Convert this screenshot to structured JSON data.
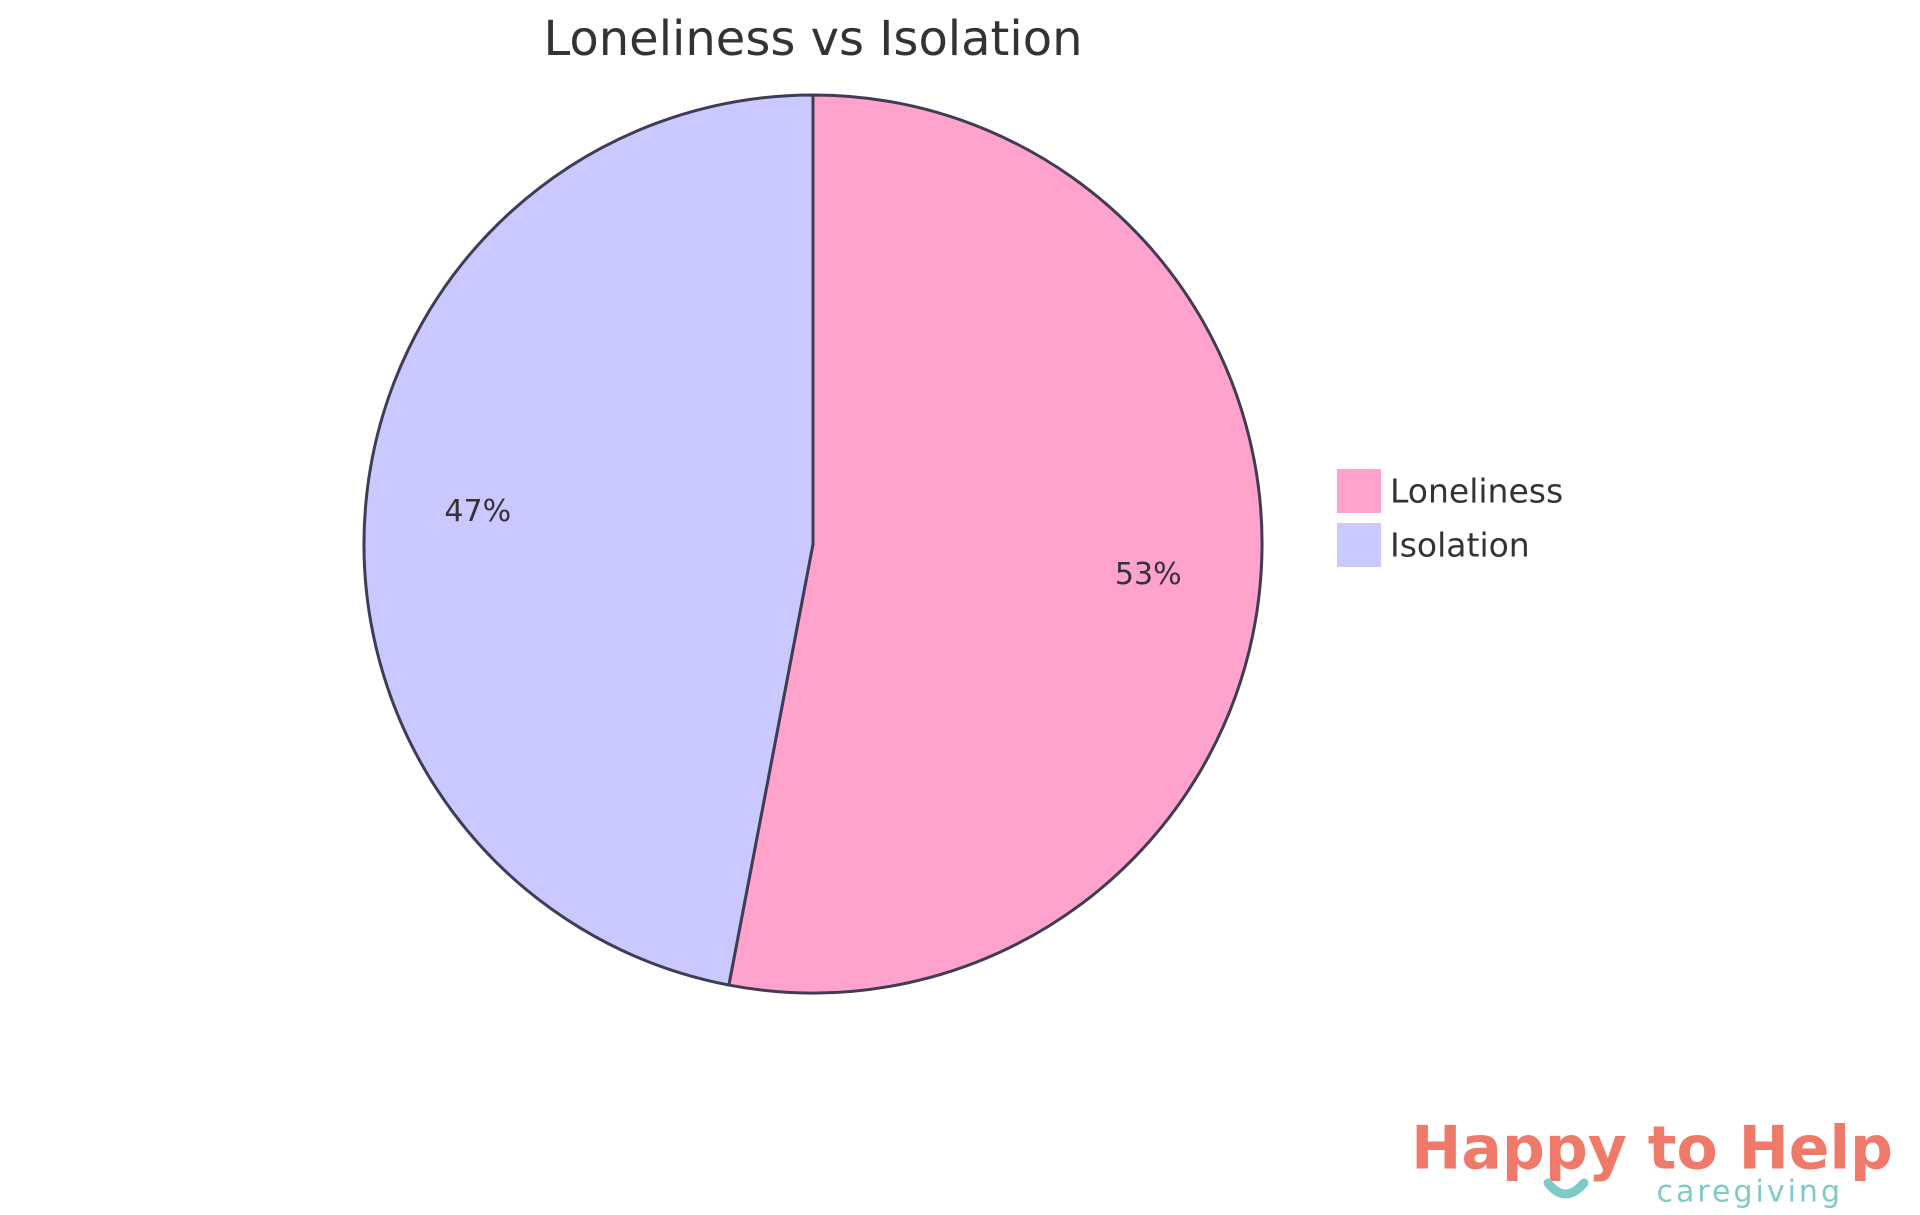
{
  "chart_data": {
    "type": "pie",
    "title": "Loneliness vs Isolation",
    "categories": [
      "Loneliness",
      "Isolation"
    ],
    "values": [
      53,
      47
    ],
    "value_labels": [
      "53%",
      "47%"
    ],
    "colors": [
      "#ffa3cd",
      "#c9c9ff"
    ],
    "legend": "right"
  },
  "logo": {
    "name": "Happy to Help",
    "tagline": "caregiving"
  }
}
